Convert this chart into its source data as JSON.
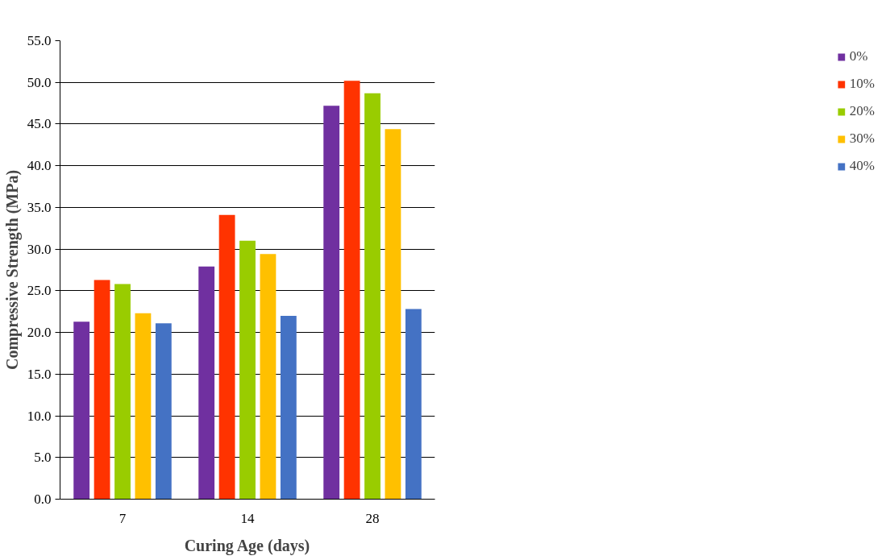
{
  "chart_data": {
    "type": "bar",
    "xlabel": "Curing Age (days)",
    "ylabel": "Compressive Strength (MPa)",
    "categories": [
      "7",
      "14",
      "28"
    ],
    "series": [
      {
        "name": "0%",
        "color": "#7030a0",
        "values": [
          21.3,
          27.9,
          47.2
        ]
      },
      {
        "name": "10%",
        "color": "#ff3300",
        "values": [
          26.3,
          34.1,
          50.2
        ]
      },
      {
        "name": "20%",
        "color": "#99cc00",
        "values": [
          25.8,
          31.0,
          48.7
        ]
      },
      {
        "name": "30%",
        "color": "#ffc000",
        "values": [
          22.3,
          29.4,
          44.4
        ]
      },
      {
        "name": "40%",
        "color": "#4472c4",
        "values": [
          21.1,
          22.0,
          22.8
        ]
      }
    ],
    "ylim": [
      0,
      55
    ],
    "yticks": [
      {
        "value": 0,
        "label": "0.0"
      },
      {
        "value": 5,
        "label": "5.0"
      },
      {
        "value": 10,
        "label": "10.0"
      },
      {
        "value": 15,
        "label": "15.0"
      },
      {
        "value": 20,
        "label": "20.0"
      },
      {
        "value": 25,
        "label": "25.0"
      },
      {
        "value": 30,
        "label": "30.0"
      },
      {
        "value": 35,
        "label": "35.0"
      },
      {
        "value": 40,
        "label": "40.0"
      },
      {
        "value": 45,
        "label": "45.0"
      },
      {
        "value": 50,
        "label": "50.0"
      },
      {
        "value": 55,
        "label": "55.0"
      }
    ],
    "grid": "y",
    "legend": "right"
  }
}
